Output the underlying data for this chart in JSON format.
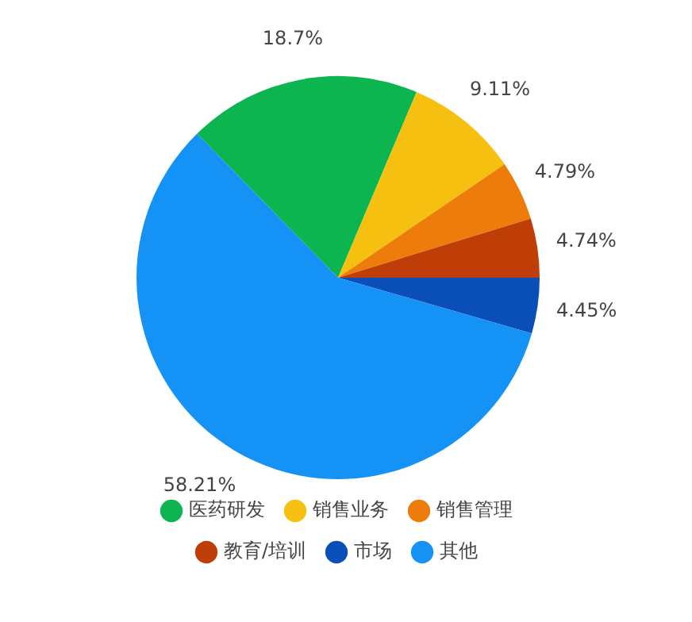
{
  "chart_data": {
    "type": "pie",
    "categories": [
      "医药研发",
      "销售业务",
      "销售管理",
      "教育/培训",
      "市场",
      "其他"
    ],
    "values": [
      18.7,
      9.11,
      4.79,
      4.74,
      4.45,
      58.21
    ],
    "value_labels": [
      "18.7%",
      "9.11%",
      "4.79%",
      "4.74%",
      "4.45%",
      "58.21%"
    ],
    "colors": [
      "#0db550",
      "#f5c010",
      "#ee7c0a",
      "#bf3d06",
      "#0a4fb8",
      "#1592f5"
    ],
    "legend": "bottom"
  }
}
